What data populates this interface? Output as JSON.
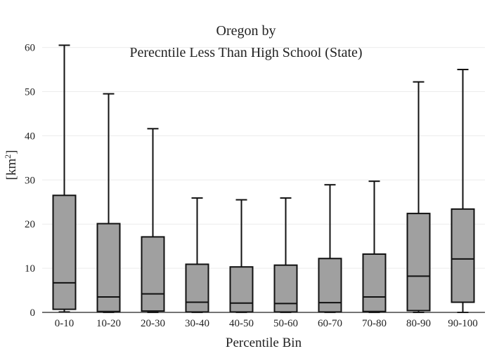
{
  "chart_data": {
    "type": "box",
    "title_line1": "Oregon  by",
    "title_line2": "Perecntile Less Than High School (State)",
    "xlabel": "Percentile Bin",
    "ylabel": "[km²]",
    "ylim": [
      0,
      62
    ],
    "yticks": [
      0,
      10,
      20,
      30,
      40,
      50,
      60
    ],
    "grid": true,
    "box_color": "#a0a0a0",
    "line_color": "#111111",
    "categories": [
      "0-10",
      "10-20",
      "20-30",
      "30-40",
      "40-50",
      "50-60",
      "60-70",
      "70-80",
      "80-90",
      "90-100"
    ],
    "boxes": [
      {
        "min": 0.1,
        "q1": 0.7,
        "median": 6.7,
        "q3": 26.5,
        "max": 60.5
      },
      {
        "min": 0.0,
        "q1": 0.2,
        "median": 3.5,
        "q3": 20.1,
        "max": 49.5
      },
      {
        "min": 0.0,
        "q1": 0.3,
        "median": 4.2,
        "q3": 17.1,
        "max": 41.6
      },
      {
        "min": 0.0,
        "q1": 0.1,
        "median": 2.3,
        "q3": 10.9,
        "max": 25.9
      },
      {
        "min": 0.0,
        "q1": 0.1,
        "median": 2.1,
        "q3": 10.3,
        "max": 25.5
      },
      {
        "min": 0.0,
        "q1": 0.1,
        "median": 2.0,
        "q3": 10.7,
        "max": 25.9
      },
      {
        "min": 0.0,
        "q1": 0.1,
        "median": 2.2,
        "q3": 12.2,
        "max": 28.9
      },
      {
        "min": 0.0,
        "q1": 0.2,
        "median": 3.5,
        "q3": 13.2,
        "max": 29.7
      },
      {
        "min": 0.0,
        "q1": 0.4,
        "median": 8.2,
        "q3": 22.4,
        "max": 52.2
      },
      {
        "min": 0.0,
        "q1": 2.3,
        "median": 12.1,
        "q3": 23.4,
        "max": 55.0
      }
    ]
  }
}
